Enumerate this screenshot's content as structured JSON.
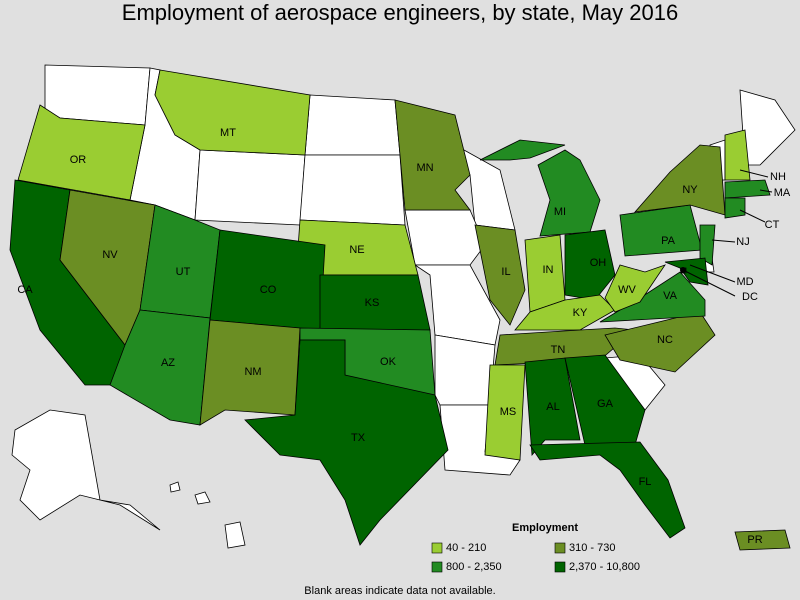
{
  "title": "Employment of aerospace engineers, by state, May 2016",
  "legend": {
    "title": "Employment",
    "items": [
      {
        "label": "40 - 210",
        "color": "#9acd32"
      },
      {
        "label": "310 - 730",
        "color": "#6b8e23"
      },
      {
        "label": "800 - 2,350",
        "color": "#228b22"
      },
      {
        "label": "2,370 - 10,800",
        "color": "#006400"
      }
    ]
  },
  "states": [
    {
      "label": "OR",
      "class": 0
    },
    {
      "label": "MT",
      "class": 0
    },
    {
      "label": "NE",
      "class": 0
    },
    {
      "label": "MN",
      "class": 1
    },
    {
      "label": "IL",
      "class": 1
    },
    {
      "label": "IN",
      "class": 0
    },
    {
      "label": "MI",
      "class": 2
    },
    {
      "label": "OH",
      "class": 3
    },
    {
      "label": "KY",
      "class": 0
    },
    {
      "label": "TN",
      "class": 1
    },
    {
      "label": "NC",
      "class": 1
    },
    {
      "label": "VA",
      "class": 2
    },
    {
      "label": "WV",
      "class": 0
    },
    {
      "label": "PA",
      "class": 2
    },
    {
      "label": "NY",
      "class": 1
    },
    {
      "label": "NJ",
      "class": 2
    },
    {
      "label": "MD",
      "class": 3
    },
    {
      "label": "DC",
      "class": 3
    },
    {
      "label": "NH",
      "class": 0
    },
    {
      "label": "MA",
      "class": 2
    },
    {
      "label": "CT",
      "class": 2
    },
    {
      "label": "CA",
      "class": 3
    },
    {
      "label": "NV",
      "class": 1
    },
    {
      "label": "UT",
      "class": 2
    },
    {
      "label": "AZ",
      "class": 2
    },
    {
      "label": "CO",
      "class": 3
    },
    {
      "label": "NM",
      "class": 1
    },
    {
      "label": "KS",
      "class": 3
    },
    {
      "label": "OK",
      "class": 2
    },
    {
      "label": "TX",
      "class": 3
    },
    {
      "label": "MS",
      "class": 0
    },
    {
      "label": "AL",
      "class": 3
    },
    {
      "label": "GA",
      "class": 3
    },
    {
      "label": "FL",
      "class": 3
    },
    {
      "label": "PR",
      "class": 1
    }
  ],
  "note": "Blank areas indicate data not available."
}
